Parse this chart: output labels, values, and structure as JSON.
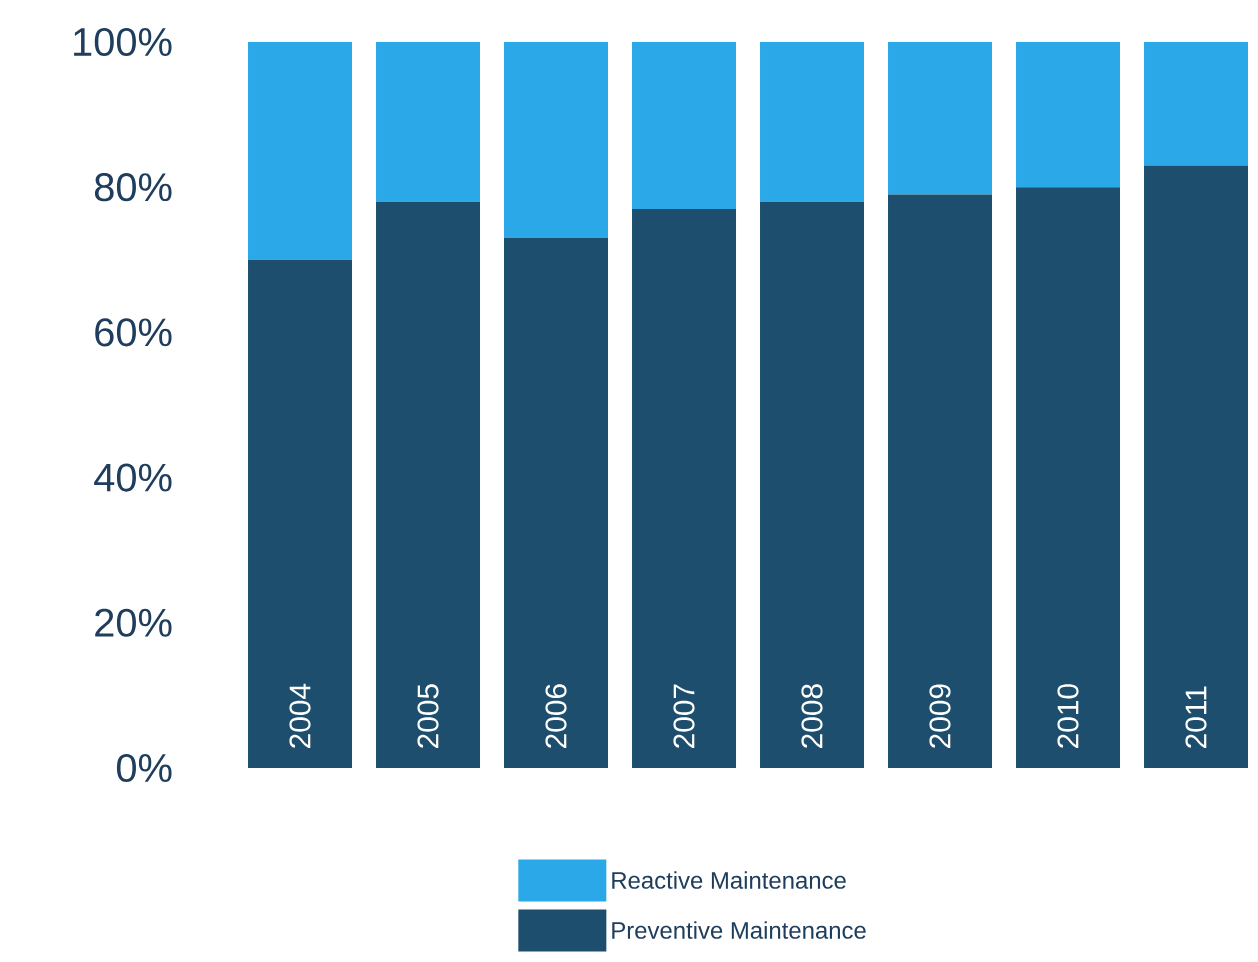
{
  "chart_data": {
    "type": "bar",
    "stacked": true,
    "legend": "bottom",
    "categories": [
      "2004",
      "2005",
      "2006",
      "2007",
      "2008",
      "2009",
      "2010",
      "2011"
    ],
    "series": [
      {
        "name": "Preventive Maintenance",
        "color": "#1d4e6e",
        "values": [
          70,
          78,
          73,
          77,
          78,
          79,
          80,
          83
        ]
      },
      {
        "name": "Reactive Maintenance",
        "color": "#2aa8e8",
        "values": [
          30,
          22,
          27,
          23,
          22,
          21,
          20,
          17
        ]
      }
    ],
    "ylim": [
      0,
      100
    ],
    "yticks": [
      {
        "value": 0,
        "label": "0%"
      },
      {
        "value": 20,
        "label": "20%"
      },
      {
        "value": 40,
        "label": "40%"
      },
      {
        "value": 60,
        "label": "60%"
      },
      {
        "value": 80,
        "label": "80%"
      },
      {
        "value": 100,
        "label": "100%"
      }
    ]
  }
}
